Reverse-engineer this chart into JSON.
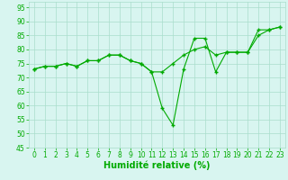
{
  "line1_x": [
    0,
    1,
    2,
    3,
    4,
    5,
    6,
    7,
    8,
    9,
    10,
    11,
    12,
    13,
    14,
    15,
    16,
    17,
    18,
    19,
    20,
    21,
    22,
    23
  ],
  "line1_y": [
    73,
    74,
    74,
    75,
    74,
    76,
    76,
    78,
    78,
    76,
    75,
    72,
    59,
    53,
    73,
    84,
    84,
    72,
    79,
    79,
    79,
    87,
    87,
    88
  ],
  "line2_x": [
    0,
    1,
    2,
    3,
    4,
    5,
    6,
    7,
    8,
    9,
    10,
    11,
    12,
    13,
    14,
    15,
    16,
    17,
    18,
    19,
    20,
    21,
    22,
    23
  ],
  "line2_y": [
    73,
    74,
    74,
    75,
    74,
    76,
    76,
    78,
    78,
    76,
    75,
    72,
    72,
    75,
    78,
    80,
    81,
    78,
    79,
    79,
    79,
    85,
    87,
    88
  ],
  "line_color": "#00aa00",
  "bg_color": "#d8f5f0",
  "grid_color": "#aaddcc",
  "xlabel": "Humidité relative (%)",
  "xlabel_color": "#00aa00",
  "xlabel_fontsize": 7,
  "ylim": [
    45,
    97
  ],
  "xlim": [
    -0.5,
    23.5
  ],
  "yticks": [
    45,
    50,
    55,
    60,
    65,
    70,
    75,
    80,
    85,
    90,
    95
  ],
  "xticks": [
    0,
    1,
    2,
    3,
    4,
    5,
    6,
    7,
    8,
    9,
    10,
    11,
    12,
    13,
    14,
    15,
    16,
    17,
    18,
    19,
    20,
    21,
    22,
    23
  ],
  "tick_color": "#00aa00",
  "tick_fontsize": 5.5,
  "marker": "+"
}
